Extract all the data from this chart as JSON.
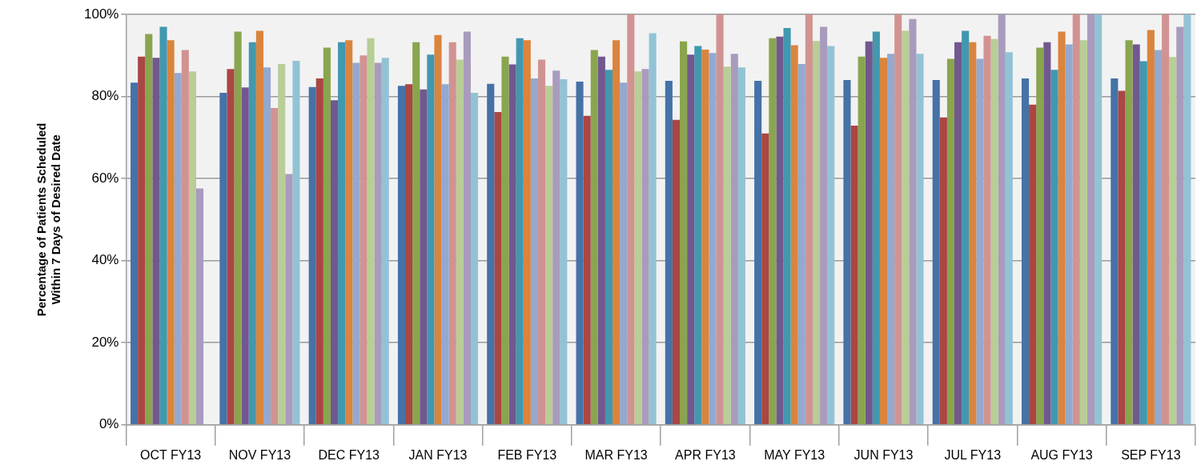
{
  "chart_data": {
    "type": "bar",
    "ylabel": "Percentage of Patients Scheduled Within 7 Days of Desired Date",
    "categories": [
      "OCT FY13",
      "NOV FY13",
      "DEC FY13",
      "JAN FY13",
      "FEB FY13",
      "MAR FY13",
      "APR FY13",
      "MAY FY13",
      "JUN FY13",
      "JUL FY13",
      "AUG FY13",
      "SEP FY13"
    ],
    "series": [
      {
        "color": "#4572a7",
        "values": [
          83.4,
          80.9,
          82.3,
          82.6,
          83.1,
          83.6,
          83.8,
          83.8,
          84.0,
          84.0,
          84.4,
          84.4
        ]
      },
      {
        "color": "#aa4643",
        "values": [
          89.7,
          86.7,
          84.4,
          83.0,
          76.2,
          75.3,
          74.3,
          71.0,
          72.9,
          74.9,
          78.0,
          81.4
        ]
      },
      {
        "color": "#89a54e",
        "values": [
          95.2,
          95.8,
          91.9,
          93.2,
          89.7,
          91.3,
          93.4,
          94.2,
          89.7,
          89.2,
          91.9,
          93.7
        ]
      },
      {
        "color": "#71588f",
        "values": [
          89.4,
          82.2,
          79.1,
          81.7,
          87.8,
          89.7,
          90.2,
          94.6,
          93.4,
          93.2,
          93.2,
          92.7
        ]
      },
      {
        "color": "#4198af",
        "values": [
          97.0,
          93.2,
          93.2,
          90.2,
          94.2,
          86.5,
          92.3,
          96.7,
          95.8,
          96.0,
          86.5,
          88.6
        ]
      },
      {
        "color": "#db843d",
        "values": [
          93.7,
          96.0,
          93.7,
          95.0,
          93.7,
          93.7,
          91.4,
          92.5,
          89.4,
          93.2,
          95.8,
          96.2
        ]
      },
      {
        "color": "#93a9cf",
        "values": [
          85.7,
          87.1,
          88.2,
          83.0,
          84.4,
          83.4,
          90.6,
          87.9,
          90.4,
          89.2,
          92.7,
          91.3
        ]
      },
      {
        "color": "#d19392",
        "values": [
          91.3,
          77.2,
          90.0,
          93.2,
          89.0,
          100,
          100,
          100,
          100,
          94.8,
          100,
          100
        ]
      },
      {
        "color": "#b9cd96",
        "values": [
          86.1,
          87.9,
          94.2,
          89.0,
          82.6,
          86.1,
          87.3,
          93.5,
          96.0,
          94.0,
          93.7,
          89.6
        ]
      },
      {
        "color": "#a99bbd",
        "values": [
          57.6,
          61.1,
          88.2,
          95.8,
          86.3,
          86.7,
          90.4,
          97.0,
          98.9,
          100,
          100,
          97.0
        ]
      },
      {
        "color": "#92c3d5",
        "values": [
          null,
          88.7,
          89.4,
          80.9,
          84.2,
          95.4,
          87.1,
          92.3,
          90.4,
          90.8,
          100,
          100
        ]
      }
    ],
    "ylim": [
      0,
      100
    ],
    "yticks": [
      {
        "value": 0,
        "label": "0%"
      },
      {
        "value": 20,
        "label": "20%"
      },
      {
        "value": 40,
        "label": "40%"
      },
      {
        "value": 60,
        "label": "60%"
      },
      {
        "value": 80,
        "label": "80%"
      },
      {
        "value": 100,
        "label": "100%"
      }
    ],
    "grid": "y",
    "legend": false
  }
}
